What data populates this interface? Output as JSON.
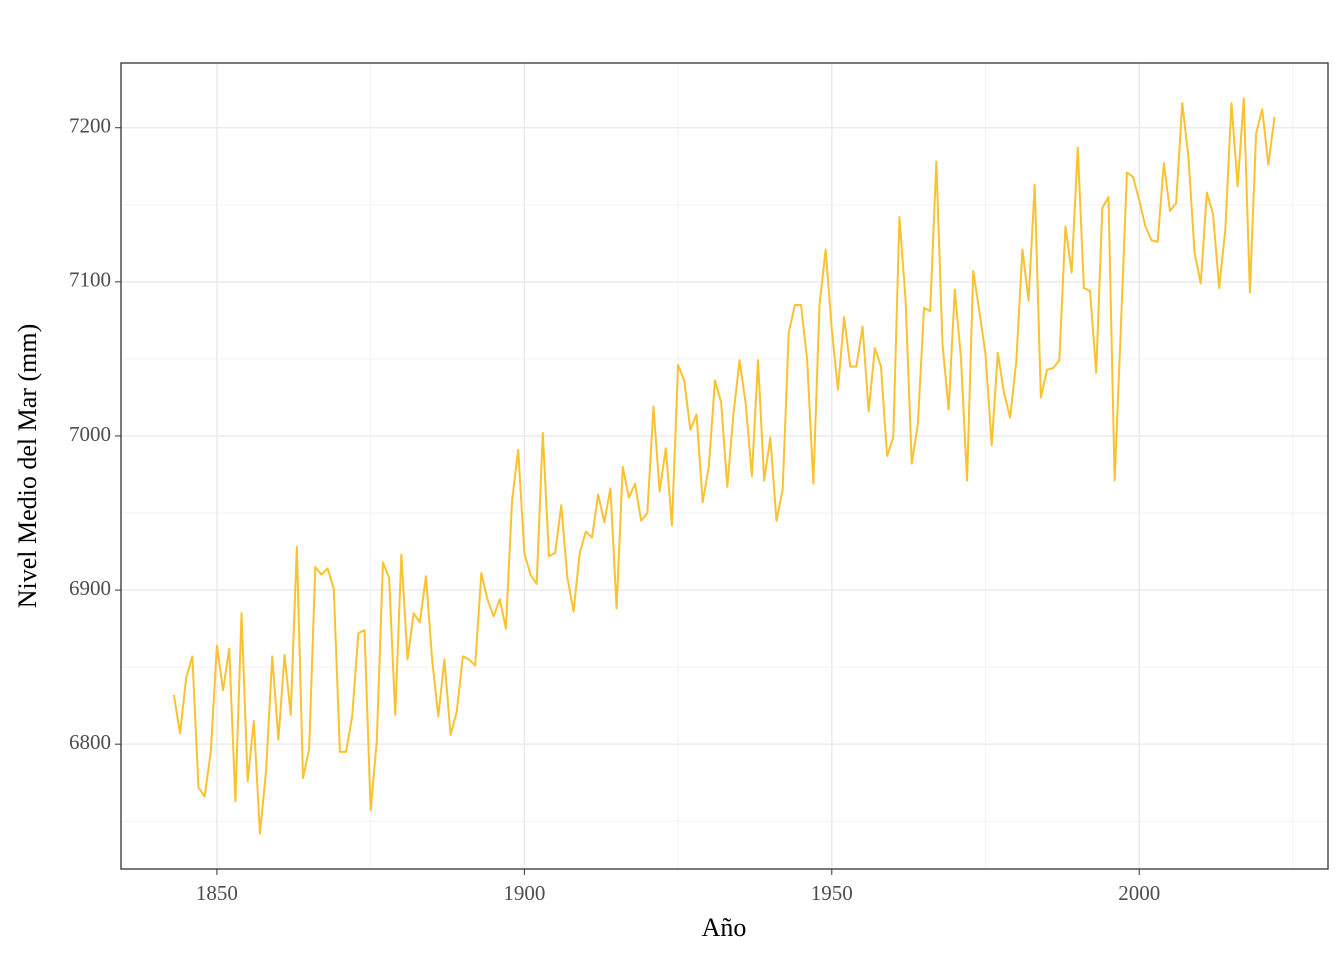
{
  "chart_data": {
    "type": "line",
    "x_label": "Año",
    "y_label": "Nivel Medio del Mar (mm)",
    "x": [
      1843,
      1844,
      1845,
      1846,
      1847,
      1848,
      1849,
      1850,
      1851,
      1852,
      1853,
      1854,
      1855,
      1856,
      1857,
      1858,
      1859,
      1860,
      1861,
      1862,
      1863,
      1864,
      1865,
      1866,
      1867,
      1868,
      1869,
      1870,
      1871,
      1872,
      1873,
      1874,
      1875,
      1876,
      1877,
      1878,
      1879,
      1880,
      1881,
      1882,
      1883,
      1884,
      1885,
      1886,
      1887,
      1888,
      1889,
      1890,
      1891,
      1892,
      1893,
      1894,
      1895,
      1896,
      1897,
      1898,
      1899,
      1900,
      1901,
      1902,
      1903,
      1904,
      1905,
      1906,
      1907,
      1908,
      1909,
      1910,
      1911,
      1912,
      1913,
      1914,
      1915,
      1916,
      1917,
      1918,
      1919,
      1920,
      1921,
      1922,
      1923,
      1924,
      1925,
      1926,
      1927,
      1928,
      1929,
      1930,
      1931,
      1932,
      1933,
      1934,
      1935,
      1936,
      1937,
      1938,
      1939,
      1940,
      1941,
      1942,
      1943,
      1944,
      1945,
      1946,
      1947,
      1948,
      1949,
      1950,
      1951,
      1952,
      1953,
      1954,
      1955,
      1956,
      1957,
      1958,
      1959,
      1960,
      1961,
      1962,
      1963,
      1964,
      1965,
      1966,
      1967,
      1968,
      1969,
      1970,
      1971,
      1972,
      1973,
      1974,
      1975,
      1976,
      1977,
      1978,
      1979,
      1980,
      1981,
      1982,
      1983,
      1984,
      1985,
      1986,
      1987,
      1988,
      1989,
      1990,
      1991,
      1992,
      1993,
      1994,
      1995,
      1996,
      1997,
      1998,
      1999,
      2000,
      2001,
      2002,
      2003,
      2004,
      2005,
      2006,
      2007,
      2008,
      2009,
      2010,
      2011,
      2012,
      2013,
      2014,
      2015,
      2016,
      2017,
      2018,
      2019,
      2020,
      2021,
      2022
    ],
    "series": [
      {
        "color": "#F9C22E",
        "values": [
          6832,
          6807,
          6843,
          6857,
          6772,
          6766,
          6795,
          6864,
          6835,
          6862,
          6763,
          6885,
          6776,
          6815,
          6742,
          6783,
          6857,
          6803,
          6858,
          6819,
          6928,
          6778,
          6797,
          6915,
          6910,
          6914,
          6901,
          6795,
          6795,
          6818,
          6872,
          6874,
          6757,
          6802,
          6918,
          6908,
          6819,
          6923,
          6855,
          6885,
          6879,
          6909,
          6855,
          6818,
          6855,
          6806,
          6821,
          6857,
          6855,
          6851,
          6911,
          6894,
          6883,
          6894,
          6875,
          6958,
          6991,
          6924,
          6910,
          6904,
          7002,
          6922,
          6924,
          6955,
          6908,
          6886,
          6924,
          6938,
          6934,
          6962,
          6944,
          6966,
          6888,
          6980,
          6960,
          6969,
          6945,
          6950,
          7019,
          6964,
          6992,
          6942,
          7046,
          7036,
          7004,
          7014,
          6957,
          6980,
          7036,
          7022,
          6967,
          7014,
          7049,
          7021,
          6974,
          7049,
          6971,
          6999,
          6945,
          6965,
          7067,
          7085,
          7085,
          7049,
          6969,
          7085,
          7121,
          7069,
          7030,
          7077,
          7045,
          7045,
          7071,
          7016,
          7057,
          7045,
          6987,
          6999,
          7142,
          7088,
          6982,
          7008,
          7083,
          7081,
          7178,
          7060,
          7017,
          7095,
          7051,
          6971,
          7107,
          7081,
          7053,
          6994,
          7054,
          7028,
          7012,
          7048,
          7121,
          7088,
          7163,
          7025,
          7043,
          7044,
          7049,
          7136,
          7106,
          7187,
          7096,
          7094,
          7041,
          7148,
          7155,
          6971,
          7069,
          7171,
          7168,
          7153,
          7136,
          7127,
          7126,
          7177,
          7146,
          7151,
          7216,
          7181,
          7119,
          7099,
          7158,
          7144,
          7096,
          7134,
          7216,
          7162,
          7219,
          7093,
          7196,
          7212,
          7176,
          7207
        ]
      }
    ],
    "xlim": [
      1834.4,
      2030.7
    ],
    "ylim": [
      6719,
      7242
    ],
    "xticks": [
      1850,
      1900,
      1950,
      2000
    ],
    "yticks": [
      6800,
      6900,
      7000,
      7100,
      7200
    ],
    "grid": true
  }
}
